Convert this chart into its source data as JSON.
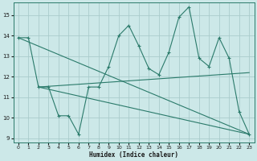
{
  "xlabel": "Humidex (Indice chaleur)",
  "xlim": [
    -0.5,
    23.5
  ],
  "ylim": [
    8.8,
    15.6
  ],
  "yticks": [
    9,
    10,
    11,
    12,
    13,
    14,
    15
  ],
  "xticks": [
    0,
    1,
    2,
    3,
    4,
    5,
    6,
    7,
    8,
    9,
    10,
    11,
    12,
    13,
    14,
    15,
    16,
    17,
    18,
    19,
    20,
    21,
    22,
    23
  ],
  "background_color": "#cce8e8",
  "grid_color": "#aacccc",
  "line_color": "#2a7a6a",
  "lines": [
    {
      "x": [
        0,
        1,
        2,
        3,
        4,
        5,
        6,
        7,
        8,
        9,
        10,
        11,
        12,
        13,
        14,
        15,
        16,
        17,
        18,
        19,
        20,
        21,
        22,
        23
      ],
      "y": [
        13.9,
        13.9,
        11.5,
        11.5,
        10.1,
        10.1,
        9.2,
        11.5,
        11.5,
        12.5,
        14.0,
        14.5,
        13.5,
        12.4,
        12.1,
        13.2,
        14.9,
        15.4,
        12.9,
        12.5,
        13.9,
        12.9,
        10.3,
        9.2
      ],
      "has_markers": true
    },
    {
      "x": [
        0,
        23
      ],
      "y": [
        13.9,
        9.2
      ],
      "has_markers": false
    },
    {
      "x": [
        2,
        23
      ],
      "y": [
        11.5,
        9.2
      ],
      "has_markers": false
    },
    {
      "x": [
        2,
        23
      ],
      "y": [
        11.5,
        12.2
      ],
      "has_markers": false
    }
  ]
}
